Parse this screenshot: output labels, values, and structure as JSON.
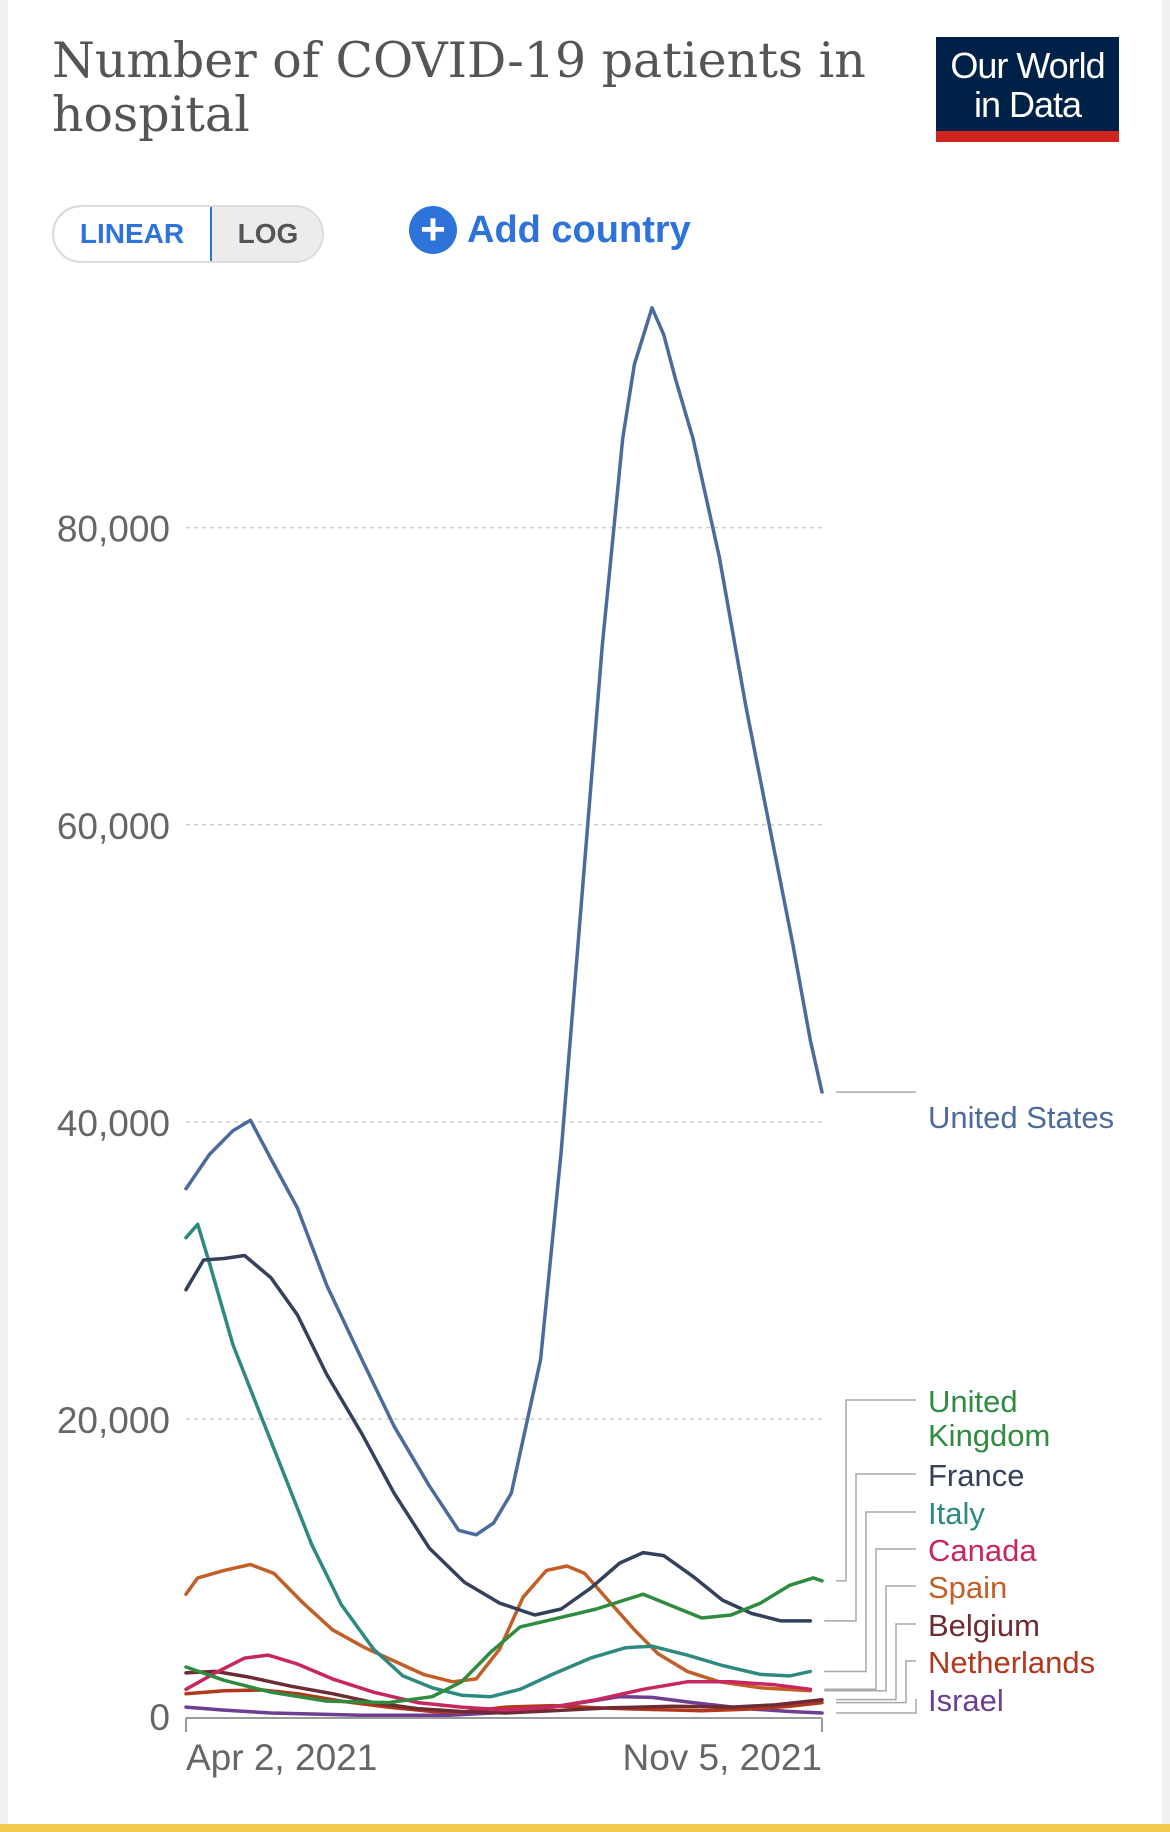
{
  "title": "Number of COVID-19 patients in hospital",
  "logo": {
    "line1": "Our World",
    "line2": "in Data"
  },
  "scale_toggle": {
    "options": [
      "LINEAR",
      "LOG"
    ],
    "selected": "LINEAR"
  },
  "add_country": {
    "label": "Add country"
  },
  "colors": {
    "accent": "#2e73d9",
    "logo_bg": "#002147",
    "logo_bar": "#ce261e",
    "bottom_bar": "#f2c94c"
  },
  "chart_data": {
    "type": "line",
    "title": "Number of COVID-19 patients in hospital",
    "x_axis": {
      "type": "date",
      "start": "2021-04-02",
      "end": "2021-11-05",
      "tick_labels": [
        "Apr 2, 2021",
        "Nov 5, 2021"
      ]
    },
    "y_axis": {
      "scale": "linear",
      "ylim": [
        0,
        96000
      ],
      "ticks": [
        0,
        20000,
        40000,
        60000,
        80000
      ],
      "tick_labels": [
        "0",
        "20,000",
        "40,000",
        "60,000",
        "80,000"
      ]
    },
    "grid": "horizontal dashed",
    "legend": "right, labels at line ends",
    "series": [
      {
        "name": "United States",
        "color": "#4c6a9c",
        "points": [
          [
            "2021-04-02",
            35500
          ],
          [
            "2021-04-10",
            37800
          ],
          [
            "2021-04-18",
            39400
          ],
          [
            "2021-04-24",
            40100
          ],
          [
            "2021-05-01",
            37500
          ],
          [
            "2021-05-10",
            34200
          ],
          [
            "2021-05-20",
            29000
          ],
          [
            "2021-06-01",
            24000
          ],
          [
            "2021-06-12",
            19500
          ],
          [
            "2021-06-24",
            15500
          ],
          [
            "2021-07-04",
            12500
          ],
          [
            "2021-07-10",
            12200
          ],
          [
            "2021-07-16",
            13000
          ],
          [
            "2021-07-22",
            15000
          ],
          [
            "2021-08-01",
            24000
          ],
          [
            "2021-08-08",
            38000
          ],
          [
            "2021-08-15",
            55000
          ],
          [
            "2021-08-22",
            72000
          ],
          [
            "2021-08-29",
            86000
          ],
          [
            "2021-09-02",
            91000
          ],
          [
            "2021-09-08",
            94800
          ],
          [
            "2021-09-12",
            93000
          ],
          [
            "2021-09-16",
            90000
          ],
          [
            "2021-09-22",
            86000
          ],
          [
            "2021-10-01",
            78000
          ],
          [
            "2021-10-10",
            68000
          ],
          [
            "2021-10-18",
            60000
          ],
          [
            "2021-10-26",
            52000
          ],
          [
            "2021-11-01",
            45500
          ],
          [
            "2021-11-05",
            42000
          ]
        ]
      },
      {
        "name": "United Kingdom",
        "color": "#2f8b3e",
        "points": [
          [
            "2021-04-02",
            3300
          ],
          [
            "2021-04-15",
            2400
          ],
          [
            "2021-05-01",
            1600
          ],
          [
            "2021-05-20",
            1000
          ],
          [
            "2021-06-10",
            900
          ],
          [
            "2021-06-25",
            1300
          ],
          [
            "2021-07-05",
            2300
          ],
          [
            "2021-07-15",
            4300
          ],
          [
            "2021-07-25",
            6000
          ],
          [
            "2021-08-05",
            6500
          ],
          [
            "2021-08-20",
            7200
          ],
          [
            "2021-09-05",
            8200
          ],
          [
            "2021-09-15",
            7400
          ],
          [
            "2021-09-25",
            6600
          ],
          [
            "2021-10-05",
            6800
          ],
          [
            "2021-10-15",
            7600
          ],
          [
            "2021-10-25",
            8800
          ],
          [
            "2021-11-02",
            9300
          ],
          [
            "2021-11-05",
            9100
          ]
        ]
      },
      {
        "name": "France",
        "color": "#33415c",
        "points": [
          [
            "2021-04-02",
            28700
          ],
          [
            "2021-04-08",
            30700
          ],
          [
            "2021-04-15",
            30800
          ],
          [
            "2021-04-22",
            31000
          ],
          [
            "2021-05-01",
            29500
          ],
          [
            "2021-05-10",
            27000
          ],
          [
            "2021-05-20",
            23000
          ],
          [
            "2021-06-01",
            19000
          ],
          [
            "2021-06-12",
            15000
          ],
          [
            "2021-06-24",
            11300
          ],
          [
            "2021-07-06",
            9000
          ],
          [
            "2021-07-18",
            7600
          ],
          [
            "2021-07-30",
            6800
          ],
          [
            "2021-08-08",
            7200
          ],
          [
            "2021-08-18",
            8600
          ],
          [
            "2021-08-28",
            10300
          ],
          [
            "2021-09-05",
            11000
          ],
          [
            "2021-09-12",
            10800
          ],
          [
            "2021-09-22",
            9400
          ],
          [
            "2021-10-02",
            7800
          ],
          [
            "2021-10-12",
            6900
          ],
          [
            "2021-10-22",
            6400
          ],
          [
            "2021-11-01",
            6400
          ]
        ]
      },
      {
        "name": "Italy",
        "color": "#2e8a80",
        "points": [
          [
            "2021-04-02",
            32200
          ],
          [
            "2021-04-06",
            33100
          ],
          [
            "2021-04-10",
            30500
          ],
          [
            "2021-04-18",
            25000
          ],
          [
            "2021-04-26",
            21000
          ],
          [
            "2021-05-05",
            16500
          ],
          [
            "2021-05-15",
            11500
          ],
          [
            "2021-05-25",
            7500
          ],
          [
            "2021-06-05",
            4500
          ],
          [
            "2021-06-15",
            2700
          ],
          [
            "2021-06-25",
            1900
          ],
          [
            "2021-07-05",
            1400
          ],
          [
            "2021-07-15",
            1300
          ],
          [
            "2021-07-25",
            1800
          ],
          [
            "2021-08-05",
            2800
          ],
          [
            "2021-08-18",
            3900
          ],
          [
            "2021-08-30",
            4600
          ],
          [
            "2021-09-08",
            4700
          ],
          [
            "2021-09-20",
            4100
          ],
          [
            "2021-10-02",
            3400
          ],
          [
            "2021-10-15",
            2800
          ],
          [
            "2021-10-25",
            2700
          ],
          [
            "2021-11-01",
            3000
          ]
        ]
      },
      {
        "name": "Canada",
        "color": "#c8265f",
        "points": [
          [
            "2021-04-02",
            1800
          ],
          [
            "2021-04-12",
            2900
          ],
          [
            "2021-04-22",
            3900
          ],
          [
            "2021-04-30",
            4100
          ],
          [
            "2021-05-10",
            3500
          ],
          [
            "2021-05-22",
            2500
          ],
          [
            "2021-06-05",
            1600
          ],
          [
            "2021-06-20",
            900
          ],
          [
            "2021-07-05",
            600
          ],
          [
            "2021-07-20",
            400
          ],
          [
            "2021-08-05",
            600
          ],
          [
            "2021-08-20",
            1100
          ],
          [
            "2021-09-05",
            1800
          ],
          [
            "2021-09-20",
            2300
          ],
          [
            "2021-10-05",
            2300
          ],
          [
            "2021-10-20",
            2100
          ],
          [
            "2021-11-01",
            1800
          ]
        ]
      },
      {
        "name": "Spain",
        "color": "#c15f27",
        "points": [
          [
            "2021-04-02",
            8200
          ],
          [
            "2021-04-06",
            9300
          ],
          [
            "2021-04-15",
            9800
          ],
          [
            "2021-04-24",
            10200
          ],
          [
            "2021-05-02",
            9600
          ],
          [
            "2021-05-12",
            7600
          ],
          [
            "2021-05-22",
            5800
          ],
          [
            "2021-06-02",
            4600
          ],
          [
            "2021-06-12",
            3700
          ],
          [
            "2021-06-22",
            2800
          ],
          [
            "2021-07-02",
            2300
          ],
          [
            "2021-07-10",
            2500
          ],
          [
            "2021-07-18",
            4500
          ],
          [
            "2021-07-26",
            8000
          ],
          [
            "2021-08-03",
            9800
          ],
          [
            "2021-08-10",
            10100
          ],
          [
            "2021-08-16",
            9600
          ],
          [
            "2021-08-24",
            7800
          ],
          [
            "2021-09-02",
            5800
          ],
          [
            "2021-09-10",
            4200
          ],
          [
            "2021-09-20",
            3000
          ],
          [
            "2021-10-01",
            2300
          ],
          [
            "2021-10-15",
            1900
          ],
          [
            "2021-11-01",
            1700
          ]
        ]
      },
      {
        "name": "Belgium",
        "color": "#6d2b33",
        "points": [
          [
            "2021-04-02",
            2900
          ],
          [
            "2021-04-12",
            3000
          ],
          [
            "2021-04-24",
            2600
          ],
          [
            "2021-05-08",
            2000
          ],
          [
            "2021-05-22",
            1500
          ],
          [
            "2021-06-05",
            900
          ],
          [
            "2021-06-20",
            500
          ],
          [
            "2021-07-05",
            300
          ],
          [
            "2021-07-20",
            200
          ],
          [
            "2021-08-05",
            350
          ],
          [
            "2021-08-25",
            550
          ],
          [
            "2021-09-15",
            650
          ],
          [
            "2021-10-05",
            600
          ],
          [
            "2021-10-20",
            750
          ],
          [
            "2021-11-05",
            1100
          ]
        ]
      },
      {
        "name": "Netherlands",
        "color": "#b3381b",
        "points": [
          [
            "2021-04-02",
            1500
          ],
          [
            "2021-04-15",
            1700
          ],
          [
            "2021-04-28",
            1750
          ],
          [
            "2021-05-10",
            1500
          ],
          [
            "2021-05-25",
            1000
          ],
          [
            "2021-06-10",
            600
          ],
          [
            "2021-06-25",
            300
          ],
          [
            "2021-07-05",
            250
          ],
          [
            "2021-07-20",
            600
          ],
          [
            "2021-08-05",
            700
          ],
          [
            "2021-08-20",
            550
          ],
          [
            "2021-09-05",
            450
          ],
          [
            "2021-09-25",
            350
          ],
          [
            "2021-10-10",
            450
          ],
          [
            "2021-10-25",
            650
          ],
          [
            "2021-11-05",
            900
          ]
        ]
      },
      {
        "name": "Israel",
        "color": "#6d3e91",
        "points": [
          [
            "2021-04-02",
            600
          ],
          [
            "2021-04-15",
            400
          ],
          [
            "2021-05-01",
            200
          ],
          [
            "2021-06-01",
            50
          ],
          [
            "2021-07-01",
            50
          ],
          [
            "2021-07-25",
            300
          ],
          [
            "2021-08-15",
            900
          ],
          [
            "2021-08-28",
            1300
          ],
          [
            "2021-09-08",
            1250
          ],
          [
            "2021-09-22",
            900
          ],
          [
            "2021-10-10",
            500
          ],
          [
            "2021-10-25",
            300
          ],
          [
            "2021-11-05",
            200
          ]
        ]
      }
    ]
  }
}
